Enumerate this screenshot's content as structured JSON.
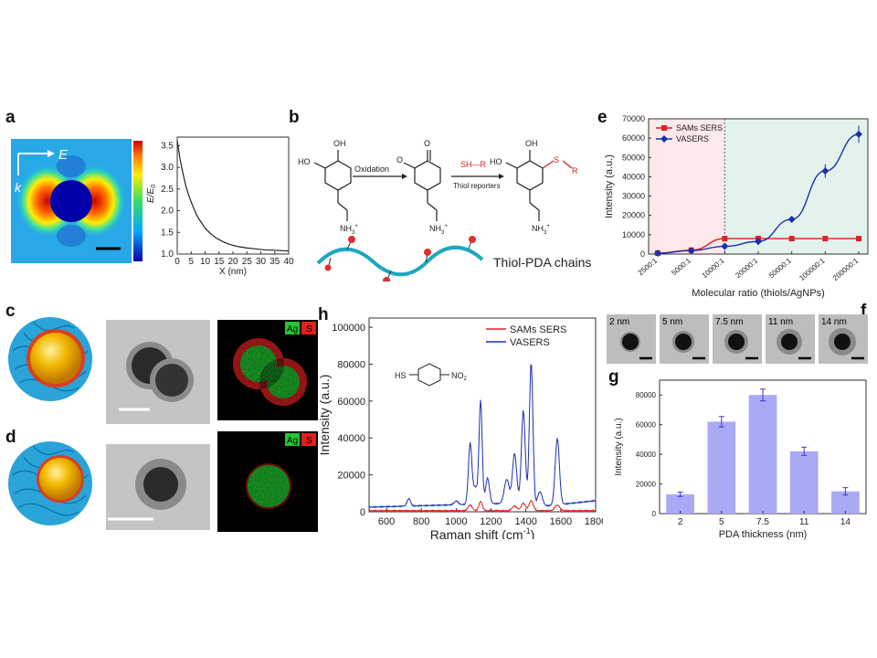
{
  "panel_letters": {
    "a": "a",
    "b": "b",
    "c": "c",
    "d": "d",
    "e": "e",
    "f": "f",
    "g": "g",
    "h": "h"
  },
  "panel_a": {
    "field_label": "E",
    "k_label": "k",
    "colors": {
      "low": "#0000aa",
      "high": "#cc0000"
    }
  },
  "chart_a": {
    "type": "line",
    "xlabel": "X (nm)",
    "ylabel": "E/E",
    "ylabel_sub": "0",
    "xlim": [
      0,
      40
    ],
    "ylim": [
      1.0,
      3.7
    ],
    "x_ticks": [
      "0",
      "5",
      "10",
      "15",
      "20",
      "25",
      "30",
      "35",
      "40"
    ],
    "y_ticks": [
      "1.0",
      "1.5",
      "2.0",
      "2.5",
      "3.0",
      "3.5"
    ],
    "x": [
      0,
      1,
      2,
      3,
      4,
      5,
      6,
      7,
      8,
      10,
      12,
      14,
      16,
      18,
      20,
      22,
      25,
      28,
      31,
      34,
      37,
      40
    ],
    "y": [
      3.62,
      3.2,
      2.88,
      2.6,
      2.38,
      2.2,
      2.04,
      1.9,
      1.79,
      1.6,
      1.47,
      1.37,
      1.3,
      1.24,
      1.2,
      1.17,
      1.14,
      1.12,
      1.1,
      1.09,
      1.08,
      1.07
    ]
  },
  "panel_b": {
    "step1_label": "Oxidation",
    "reagent_label": "SH—R",
    "step2_label": "Thiol reporters",
    "oh": "OH",
    "ho": "HO",
    "o": "O",
    "nh3": "NH",
    "nh3_sub": "3",
    "nh3_sup": "+",
    "s_label": "S",
    "r_label": "R",
    "chain_label": "Thiol-PDA chains"
  },
  "chart_e": {
    "type": "line",
    "ylabel": "Intensity (a.u.)",
    "xlabel": "Molecular ratio (thiols/AgNPs)",
    "categories": [
      "2500:1",
      "5000:1",
      "10000:1",
      "20000:1",
      "50000:1",
      "100000:1",
      "200000:1"
    ],
    "ylim": [
      0,
      70000
    ],
    "y_ticks": [
      "0",
      "10000",
      "20000",
      "30000",
      "40000",
      "50000",
      "60000",
      "70000"
    ],
    "legend_position": "top-left",
    "series": [
      {
        "name": "SAMs SERS",
        "color": "#e02020",
        "values": [
          500,
          2000,
          8000,
          8000,
          8000,
          8000,
          8000
        ],
        "errors": [
          400,
          500,
          800,
          1500,
          1200,
          900,
          900
        ]
      },
      {
        "name": "VASERS",
        "color": "#1a2fb0",
        "values": [
          400,
          1800,
          4000,
          6500,
          18000,
          43000,
          62000
        ],
        "errors": [
          600,
          700,
          800,
          1500,
          1500,
          3500,
          4500
        ]
      }
    ]
  },
  "panel_cd": {
    "ag": "Ag",
    "s": "S"
  },
  "chart_h": {
    "type": "line",
    "xlabel": "Raman shift (cm",
    "xlabel_sup": "-1",
    "xlabel_end": ")",
    "ylabel": "Intensity (a.u.)",
    "xlim": [
      500,
      1800
    ],
    "ylim": [
      0,
      105000
    ],
    "x_ticks": [
      "600",
      "800",
      "1000",
      "1200",
      "1400",
      "1600",
      "1800"
    ],
    "y_ticks": [
      "0",
      "20000",
      "40000",
      "60000",
      "80000",
      "100000"
    ],
    "molecule_hs": "HS",
    "molecule_no2": "NO",
    "molecule_no2_sub": "2",
    "legend_position": "top-right",
    "series": [
      {
        "name": "SAMs SERS",
        "color": "#e02020"
      },
      {
        "name": "VASERS",
        "color": "#1a2fb0"
      }
    ]
  },
  "panel_f": {
    "labels": [
      "2 nm",
      "5 nm",
      "7.5 nm",
      "11 nm",
      "14 nm"
    ]
  },
  "chart_g": {
    "type": "bar",
    "xlabel": "PDA thickness (nm)",
    "ylabel": "Intensity (a.u.)",
    "categories": [
      "2",
      "5",
      "7.5",
      "11",
      "14"
    ],
    "values": [
      13000,
      62000,
      80000,
      42000,
      15000
    ],
    "errors": [
      1500,
      3500,
      4000,
      2800,
      2500
    ],
    "ylim": [
      0,
      90000
    ],
    "y_ticks": [
      "0",
      "20000",
      "40000",
      "60000",
      "80000"
    ],
    "bar_color": "#a9a9f5"
  }
}
